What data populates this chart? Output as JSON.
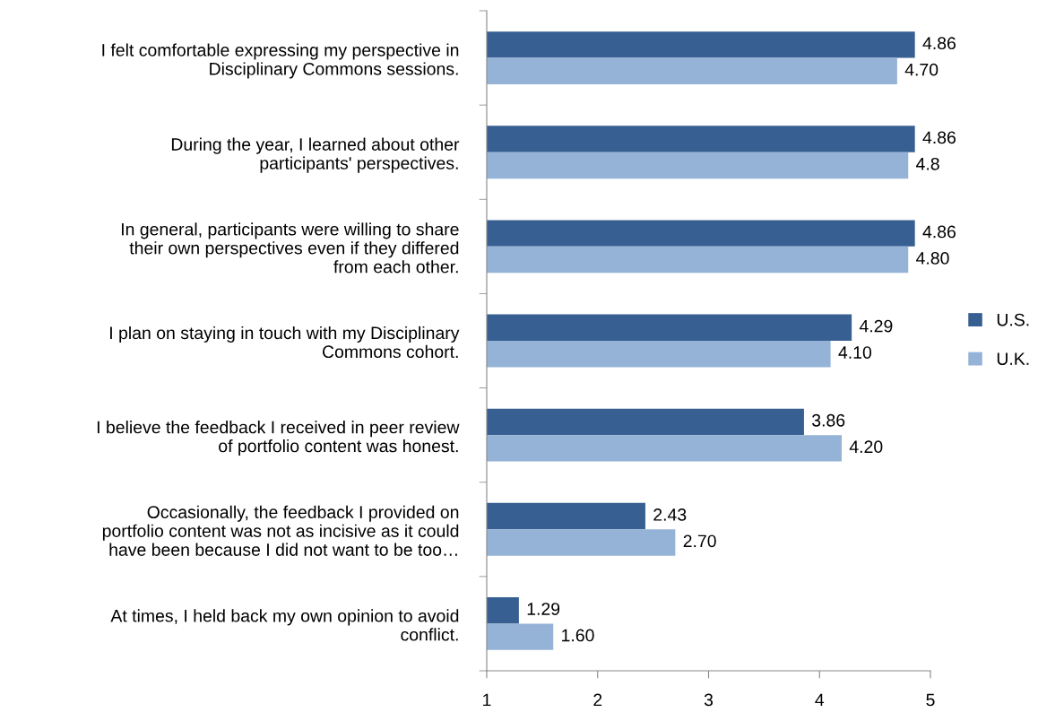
{
  "chart_data": {
    "type": "bar",
    "orientation": "horizontal",
    "categories": [
      "I felt comfortable expressing my perspective in\nDisciplinary Commons sessions.",
      "During the year, I learned about other\nparticipants' perspectives.",
      "In general, participants were willing to share\ntheir own perspectives even if they differed\nfrom each other.",
      "I plan on staying in touch with my Disciplinary\nCommons cohort.",
      "I believe the feedback I received in peer review\nof portfolio content was honest.",
      "Occasionally, the feedback I provided on\nportfolio content was not as incisive as it could\nhave been because I did not want to be too…",
      "At times, I held back my own opinion to avoid\nconflict."
    ],
    "series": [
      {
        "name": "U.S.",
        "color": "#375f91",
        "values": [
          4.86,
          4.86,
          4.86,
          4.29,
          3.86,
          2.43,
          1.29
        ],
        "value_labels": [
          "4.86",
          "4.86",
          "4.86",
          "4.29",
          "3.86",
          "2.43",
          "1.29"
        ]
      },
      {
        "name": "U.K.",
        "color": "#95b3d7",
        "values": [
          4.7,
          4.8,
          4.8,
          4.1,
          4.2,
          2.7,
          1.6
        ],
        "value_labels": [
          "4.70",
          "4.8",
          "4.80",
          "4.10",
          "4.20",
          "2.70",
          "1.60"
        ]
      }
    ],
    "xlim": [
      1,
      5
    ],
    "xticks": [
      1,
      2,
      3,
      4,
      5
    ],
    "grid": false,
    "legend": "right"
  }
}
